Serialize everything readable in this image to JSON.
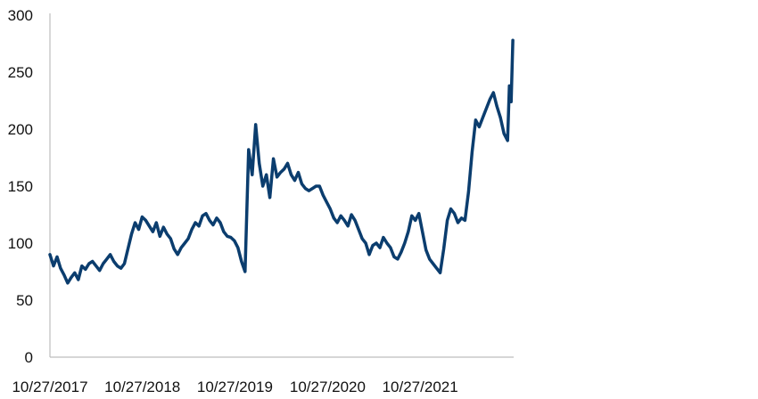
{
  "chart_data": {
    "type": "line",
    "title": "",
    "xlabel": "",
    "ylabel": "",
    "ylim": [
      0,
      300
    ],
    "yticks": [
      0,
      50,
      100,
      150,
      200,
      250,
      300
    ],
    "xticks": [
      "10/27/2017",
      "10/27/2018",
      "10/27/2019",
      "10/27/2020",
      "10/27/2021"
    ],
    "grid": false,
    "legend": "none",
    "color": "#0b3d6e",
    "series": [
      {
        "x": [
          "2017-10-27",
          "2017-11-10",
          "2017-11-24",
          "2017-12-08",
          "2017-12-22",
          "2018-01-05",
          "2018-01-19",
          "2018-02-02",
          "2018-02-16",
          "2018-03-02",
          "2018-03-16",
          "2018-03-30",
          "2018-04-13",
          "2018-04-27",
          "2018-05-11",
          "2018-05-25",
          "2018-06-08",
          "2018-06-22",
          "2018-07-06",
          "2018-07-20",
          "2018-08-03",
          "2018-08-17",
          "2018-08-31",
          "2018-09-14",
          "2018-09-28",
          "2018-10-12",
          "2018-10-26",
          "2018-11-09",
          "2018-11-23",
          "2018-12-07",
          "2018-12-21",
          "2019-01-04",
          "2019-01-18",
          "2019-02-01",
          "2019-02-15",
          "2019-03-01",
          "2019-03-15",
          "2019-03-29",
          "2019-04-12",
          "2019-04-26",
          "2019-05-10",
          "2019-05-24",
          "2019-06-07",
          "2019-06-21",
          "2019-07-05",
          "2019-07-19",
          "2019-08-02",
          "2019-08-16",
          "2019-08-30",
          "2019-09-13",
          "2019-09-27",
          "2019-10-11",
          "2019-10-25",
          "2019-11-08",
          "2019-11-22",
          "2019-12-06",
          "2019-12-20",
          "2020-01-03",
          "2020-01-17",
          "2020-01-31",
          "2020-02-14",
          "2020-02-28",
          "2020-03-13",
          "2020-03-27",
          "2020-04-10",
          "2020-04-24",
          "2020-05-08",
          "2020-05-22",
          "2020-06-05",
          "2020-06-19",
          "2020-07-03",
          "2020-07-17",
          "2020-07-31",
          "2020-08-14",
          "2020-08-28",
          "2020-09-11",
          "2020-09-25",
          "2020-10-09",
          "2020-10-23",
          "2020-11-06",
          "2020-11-20",
          "2020-12-04",
          "2020-12-18",
          "2021-01-01",
          "2021-01-15",
          "2021-01-29",
          "2021-02-12",
          "2021-02-26",
          "2021-03-12",
          "2021-03-26",
          "2021-04-09",
          "2021-04-23",
          "2021-05-07",
          "2021-05-21",
          "2021-06-04",
          "2021-06-18",
          "2021-07-02",
          "2021-07-16",
          "2021-07-30",
          "2021-08-13",
          "2021-08-27",
          "2021-09-10",
          "2021-09-24",
          "2021-10-08",
          "2021-10-22",
          "2021-11-05",
          "2021-11-19",
          "2021-12-03",
          "2021-12-17",
          "2021-12-31",
          "2022-01-14",
          "2022-01-28",
          "2022-02-11",
          "2022-02-25",
          "2022-03-11",
          "2022-03-25",
          "2022-04-08",
          "2022-04-22",
          "2022-05-06",
          "2022-05-20",
          "2022-06-03",
          "2022-06-17",
          "2022-07-01",
          "2022-07-15",
          "2022-07-29",
          "2022-08-12",
          "2022-08-26",
          "2022-09-09",
          "2022-09-23",
          "2022-10-07",
          "2022-10-14",
          "2022-10-21",
          "2022-10-28"
        ],
        "y": [
          90,
          80,
          88,
          78,
          72,
          65,
          70,
          74,
          68,
          80,
          77,
          82,
          84,
          80,
          76,
          82,
          86,
          90,
          84,
          80,
          78,
          82,
          95,
          108,
          118,
          112,
          123,
          120,
          115,
          110,
          118,
          106,
          114,
          108,
          104,
          95,
          90,
          96,
          100,
          104,
          112,
          118,
          115,
          124,
          126,
          120,
          116,
          122,
          118,
          110,
          106,
          105,
          102,
          96,
          84,
          75,
          182,
          160,
          204,
          170,
          150,
          160,
          140,
          174,
          158,
          162,
          165,
          170,
          160,
          155,
          162,
          152,
          148,
          146,
          148,
          150,
          150,
          142,
          136,
          130,
          122,
          118,
          124,
          120,
          115,
          125,
          120,
          112,
          104,
          100,
          90,
          98,
          100,
          96,
          105,
          100,
          96,
          88,
          86,
          92,
          100,
          110,
          124,
          120,
          126,
          110,
          94,
          86,
          82,
          78,
          74,
          95,
          120,
          130,
          126,
          118,
          122,
          120,
          145,
          180,
          208,
          202,
          210,
          218,
          226,
          232,
          220,
          210,
          196,
          190,
          238,
          224,
          278
        ]
      }
    ]
  }
}
